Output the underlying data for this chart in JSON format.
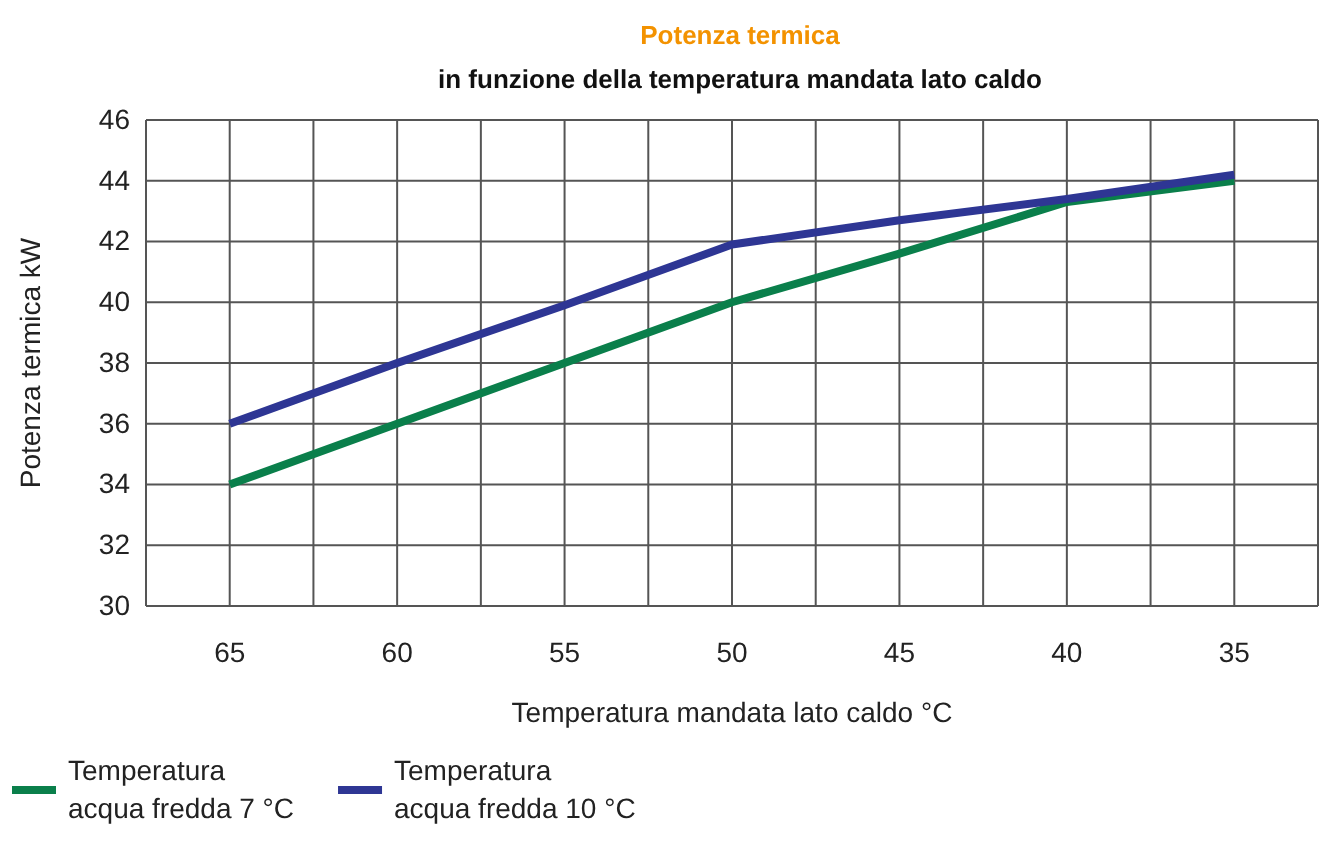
{
  "chart_data": {
    "type": "line",
    "title": "Potenza termica",
    "subtitle": "in funzione della temperatura mandata lato caldo",
    "xlabel": "Temperatura mandata lato caldo °C",
    "ylabel": "Potenza termica kW",
    "x": [
      65,
      60,
      55,
      50,
      45,
      40,
      35
    ],
    "series": [
      {
        "name": "Temperatura acqua fredda 7 °C",
        "color": "#0a7f4b",
        "values": [
          34,
          36,
          38,
          40,
          41.6,
          43.3,
          44.0
        ]
      },
      {
        "name": "Temperatura acqua fredda 10 °C",
        "color": "#2e3694",
        "values": [
          36,
          38,
          39.9,
          41.9,
          42.7,
          43.4,
          44.2
        ]
      }
    ],
    "xlim": [
      67.5,
      32.5
    ],
    "xticks": [
      {
        "value": 67.5,
        "label": null
      },
      65,
      {
        "value": 62.5,
        "label": null
      },
      60,
      {
        "value": 57.5,
        "label": null
      },
      55,
      {
        "value": 52.5,
        "label": null
      },
      50,
      {
        "value": 47.5,
        "label": null
      },
      45,
      {
        "value": 42.5,
        "label": null
      },
      40,
      {
        "value": 37.5,
        "label": null
      },
      35,
      {
        "value": 32.5,
        "label": null
      }
    ],
    "ylim": [
      30,
      46
    ],
    "yticks": [
      30,
      32,
      34,
      36,
      38,
      40,
      42,
      44,
      46
    ],
    "grid": true,
    "legend": "bottom",
    "marker": "none",
    "line_style": "solid"
  }
}
